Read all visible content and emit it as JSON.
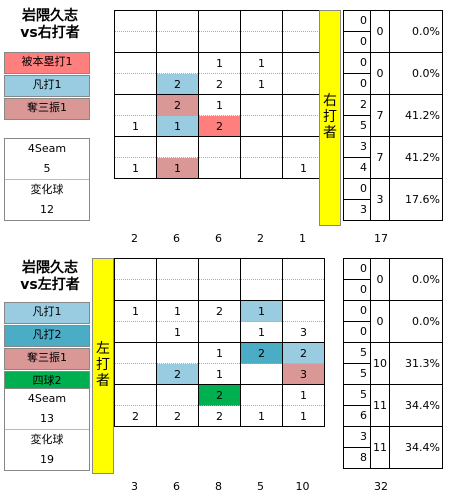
{
  "colors": {
    "hr": "#ff7f7f",
    "out": "#99cce0",
    "out2": "#4bacc6",
    "k": "#d99795",
    "bb": "#00b050",
    "yellow": "#ffff00"
  },
  "chart_data": [
    {
      "type": "heatmap",
      "title": [
        "岩隈久志",
        "vs右打者"
      ],
      "legend": [
        {
          "label": "被本塁打1",
          "color": "hr"
        },
        {
          "label": "凡打1",
          "color": "out"
        },
        {
          "label": "奪三振1",
          "color": "k"
        }
      ],
      "pitch_box": [
        "4Seam",
        "5",
        "変化球",
        "12"
      ],
      "batter_label": [
        "右",
        "打",
        "者"
      ],
      "cells": [
        [
          "",
          "",
          "",
          "",
          ""
        ],
        [
          "",
          "",
          "",
          "",
          ""
        ],
        [
          "",
          "",
          "1",
          "1",
          ""
        ],
        [
          "",
          "2",
          "2",
          "1",
          ""
        ],
        [
          "",
          "2",
          "1",
          "",
          ""
        ],
        [
          "1",
          "1",
          "2",
          "",
          ""
        ],
        [
          "",
          "",
          "",
          "",
          ""
        ],
        [
          "1",
          "1",
          "",
          "",
          "1"
        ]
      ],
      "cell_colors": [
        [
          "",
          "",
          "",
          "",
          ""
        ],
        [
          "",
          "",
          "",
          "",
          ""
        ],
        [
          "",
          "",
          "",
          "",
          ""
        ],
        [
          "",
          "out",
          "",
          "",
          ""
        ],
        [
          "",
          "k",
          "",
          "",
          ""
        ],
        [
          "",
          "out",
          "hr",
          "",
          ""
        ],
        [
          "",
          "",
          "",
          "",
          ""
        ],
        [
          "",
          "k",
          "",
          "",
          ""
        ]
      ],
      "col_totals": [
        "2",
        "6",
        "6",
        "2",
        "1"
      ],
      "total": "17",
      "rows": [
        {
          "a": "0",
          "b": "0",
          "c": "0",
          "d": "0.0%"
        },
        {
          "a": "0",
          "b": "0",
          "c": "0",
          "d": "0.0%"
        },
        {
          "a": "2",
          "b": "5",
          "c": "7",
          "d": "41.2%"
        },
        {
          "a": "3",
          "b": "4",
          "c": "7",
          "d": "41.2%"
        },
        {
          "a": "0",
          "b": "3",
          "c": "3",
          "d": "17.6%"
        }
      ]
    },
    {
      "type": "heatmap",
      "title": [
        "岩隈久志",
        "vs左打者"
      ],
      "legend": [
        {
          "label": "凡打1",
          "color": "out"
        },
        {
          "label": "凡打2",
          "color": "out2"
        },
        {
          "label": "奪三振1",
          "color": "k"
        },
        {
          "label": "四球2",
          "color": "bb"
        }
      ],
      "pitch_box": [
        "4Seam",
        "13",
        "変化球",
        "19"
      ],
      "batter_label": [
        "左",
        "打",
        "者"
      ],
      "cells": [
        [
          "",
          "",
          "",
          "",
          ""
        ],
        [
          "",
          "",
          "",
          "",
          ""
        ],
        [
          "1",
          "1",
          "2",
          "1",
          ""
        ],
        [
          "",
          "1",
          "",
          "1",
          "3"
        ],
        [
          "",
          "",
          "1",
          "2",
          "2"
        ],
        [
          "",
          "2",
          "1",
          "",
          "3"
        ],
        [
          "",
          "",
          "2",
          "",
          "1"
        ],
        [
          "2",
          "2",
          "2",
          "1",
          "1"
        ]
      ],
      "cell_colors": [
        [
          "",
          "",
          "",
          "",
          ""
        ],
        [
          "",
          "",
          "",
          "",
          ""
        ],
        [
          "",
          "",
          "",
          "out",
          ""
        ],
        [
          "",
          "",
          "",
          "",
          ""
        ],
        [
          "",
          "",
          "",
          "out2",
          "out"
        ],
        [
          "",
          "out",
          "",
          "",
          "k"
        ],
        [
          "",
          "",
          "bb",
          "",
          ""
        ],
        [
          "",
          "",
          "",
          "",
          ""
        ]
      ],
      "col_totals": [
        "3",
        "6",
        "8",
        "5",
        "10"
      ],
      "total": "32",
      "rows": [
        {
          "a": "0",
          "b": "0",
          "c": "0",
          "d": "0.0%"
        },
        {
          "a": "0",
          "b": "0",
          "c": "0",
          "d": "0.0%"
        },
        {
          "a": "5",
          "b": "5",
          "c": "10",
          "d": "31.3%"
        },
        {
          "a": "5",
          "b": "6",
          "c": "11",
          "d": "34.4%"
        },
        {
          "a": "3",
          "b": "8",
          "c": "11",
          "d": "34.4%"
        }
      ]
    }
  ]
}
